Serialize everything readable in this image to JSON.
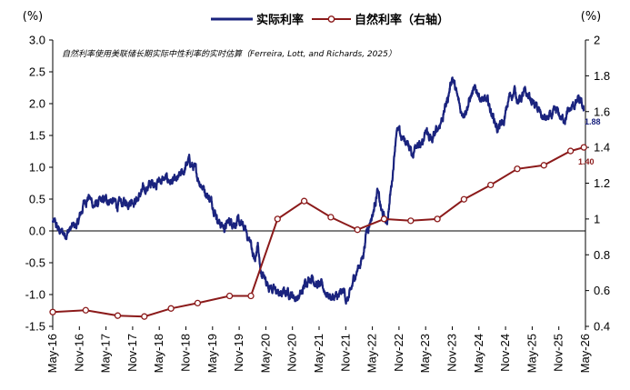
{
  "chart_data": {
    "type": "line",
    "note": "自然利率使用美联储长期实际中性利率的实时估算（Ferreira, Lott, and Richards, 2025）",
    "left_axis": {
      "unit": "(%)",
      "ylim": [
        -1.5,
        3.0
      ],
      "ticks": [
        "3.0",
        "2.5",
        "2.0",
        "1.5",
        "1.0",
        "0.5",
        "0.0",
        "-0.5",
        "-1.0",
        "-1.5"
      ]
    },
    "right_axis": {
      "unit": "(%)",
      "ylim": [
        0.4,
        2.0
      ],
      "ticks": [
        "2",
        "1.8",
        "1.6",
        "1.4",
        "1.2",
        "1",
        "0.8",
        "0.6",
        "0.4"
      ]
    },
    "x_ticks": [
      "May-16",
      "Nov-16",
      "May-17",
      "Nov-17",
      "May-18",
      "Nov-18",
      "May-19",
      "Nov-19",
      "May-20",
      "Nov-20",
      "May-21",
      "Nov-21",
      "May-22",
      "Nov-22",
      "May-23",
      "Nov-23",
      "May-24",
      "Nov-24",
      "May-25",
      "Nov-25",
      "May-26"
    ],
    "legend": "top-center",
    "colors": {
      "real_rate": "#1a237e",
      "natural_rate": "#8b1a1a"
    },
    "series": [
      {
        "name": "实际利率",
        "axis": "left",
        "end_label": "1.88",
        "anchors": [
          [
            2016.33,
            0.15
          ],
          [
            2016.45,
            0.0
          ],
          [
            2016.55,
            -0.05
          ],
          [
            2016.7,
            0.05
          ],
          [
            2016.8,
            0.1
          ],
          [
            2016.92,
            0.45
          ],
          [
            2017.0,
            0.55
          ],
          [
            2017.1,
            0.4
          ],
          [
            2017.25,
            0.45
          ],
          [
            2017.4,
            0.5
          ],
          [
            2017.55,
            0.4
          ],
          [
            2017.7,
            0.45
          ],
          [
            2017.8,
            0.5
          ],
          [
            2017.92,
            0.5
          ],
          [
            2018.05,
            0.65
          ],
          [
            2018.2,
            0.75
          ],
          [
            2018.35,
            0.8
          ],
          [
            2018.5,
            0.8
          ],
          [
            2018.65,
            0.75
          ],
          [
            2018.8,
            0.95
          ],
          [
            2018.88,
            1.1
          ],
          [
            2018.97,
            1.0
          ],
          [
            2019.05,
            0.85
          ],
          [
            2019.15,
            0.7
          ],
          [
            2019.25,
            0.55
          ],
          [
            2019.35,
            0.4
          ],
          [
            2019.45,
            0.15
          ],
          [
            2019.55,
            0.05
          ],
          [
            2019.65,
            0.15
          ],
          [
            2019.75,
            0.15
          ],
          [
            2019.85,
            0.1
          ],
          [
            2019.95,
            0.0
          ],
          [
            2020.05,
            -0.2
          ],
          [
            2020.13,
            -0.5
          ],
          [
            2020.18,
            -0.2
          ],
          [
            2020.22,
            -0.6
          ],
          [
            2020.3,
            -0.75
          ],
          [
            2020.4,
            -0.85
          ],
          [
            2020.5,
            -0.95
          ],
          [
            2020.6,
            -1.0
          ],
          [
            2020.75,
            -0.95
          ],
          [
            2020.9,
            -1.05
          ],
          [
            2021.0,
            -1.0
          ],
          [
            2021.1,
            -0.75
          ],
          [
            2021.2,
            -0.7
          ],
          [
            2021.3,
            -0.85
          ],
          [
            2021.4,
            -0.9
          ],
          [
            2021.5,
            -1.0
          ],
          [
            2021.6,
            -1.05
          ],
          [
            2021.7,
            -1.05
          ],
          [
            2021.8,
            -0.95
          ],
          [
            2021.85,
            -1.1
          ],
          [
            2021.92,
            -1.0
          ],
          [
            2022.0,
            -0.7
          ],
          [
            2022.08,
            -0.55
          ],
          [
            2022.15,
            -0.4
          ],
          [
            2022.22,
            0.0
          ],
          [
            2022.3,
            0.2
          ],
          [
            2022.35,
            0.3
          ],
          [
            2022.42,
            0.65
          ],
          [
            2022.5,
            0.3
          ],
          [
            2022.6,
            0.1
          ],
          [
            2022.7,
            0.8
          ],
          [
            2022.78,
            1.6
          ],
          [
            2022.88,
            1.45
          ],
          [
            2022.98,
            1.4
          ],
          [
            2023.08,
            1.2
          ],
          [
            2023.18,
            1.45
          ],
          [
            2023.25,
            1.3
          ],
          [
            2023.35,
            1.55
          ],
          [
            2023.45,
            1.4
          ],
          [
            2023.55,
            1.6
          ],
          [
            2023.65,
            1.8
          ],
          [
            2023.75,
            2.1
          ],
          [
            2023.83,
            2.45
          ],
          [
            2023.92,
            2.1
          ],
          [
            2024.0,
            1.85
          ],
          [
            2024.1,
            1.95
          ],
          [
            2024.2,
            2.15
          ],
          [
            2024.3,
            2.2
          ],
          [
            2024.4,
            2.05
          ],
          [
            2024.5,
            2.0
          ],
          [
            2024.6,
            1.8
          ],
          [
            2024.68,
            1.6
          ],
          [
            2024.8,
            1.7
          ],
          [
            2024.9,
            2.1
          ],
          [
            2025.0,
            2.2
          ],
          [
            2025.08,
            2.05
          ],
          [
            2025.18,
            2.15
          ],
          [
            2025.28,
            2.1
          ],
          [
            2025.4,
            1.95
          ],
          [
            2025.5,
            1.8
          ],
          [
            2025.6,
            1.75
          ],
          [
            2025.7,
            1.8
          ],
          [
            2025.8,
            1.85
          ],
          [
            2025.9,
            1.75
          ],
          [
            2026.0,
            1.85
          ],
          [
            2026.1,
            1.95
          ],
          [
            2026.2,
            2.05
          ],
          [
            2026.3,
            1.88
          ]
        ]
      },
      {
        "name": "自然利率（右轴）",
        "axis": "right",
        "end_label": "1.40",
        "points": [
          [
            2016.33,
            0.48
          ],
          [
            2016.95,
            0.49
          ],
          [
            2017.55,
            0.46
          ],
          [
            2018.05,
            0.455
          ],
          [
            2018.55,
            0.5
          ],
          [
            2019.05,
            0.53
          ],
          [
            2019.65,
            0.57
          ],
          [
            2020.05,
            0.57
          ],
          [
            2020.55,
            1.0
          ],
          [
            2021.05,
            1.1
          ],
          [
            2021.55,
            1.01
          ],
          [
            2022.05,
            0.94
          ],
          [
            2022.55,
            1.0
          ],
          [
            2023.05,
            0.99
          ],
          [
            2023.55,
            1.0
          ],
          [
            2024.05,
            1.11
          ],
          [
            2024.55,
            1.19
          ],
          [
            2025.05,
            1.28
          ],
          [
            2025.55,
            1.3
          ],
          [
            2026.05,
            1.38
          ],
          [
            2026.3,
            1.4
          ]
        ]
      }
    ]
  }
}
